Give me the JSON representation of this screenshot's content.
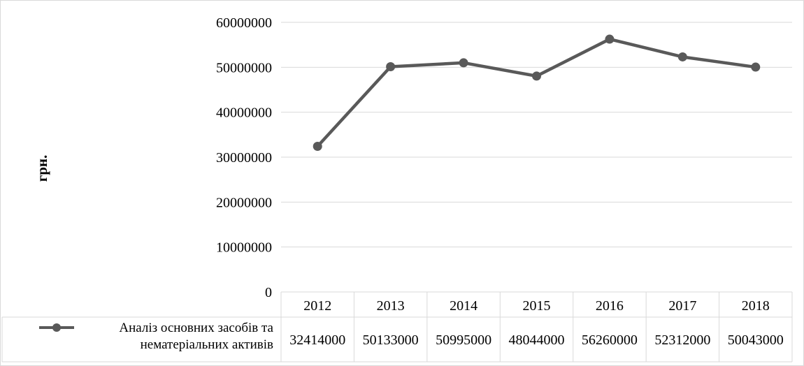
{
  "chart_data": {
    "type": "line",
    "title": "",
    "xlabel": "",
    "ylabel": "грн.",
    "ylim": [
      0,
      60000000
    ],
    "yticks": [
      "0",
      "10000000",
      "20000000",
      "30000000",
      "40000000",
      "50000000",
      "60000000"
    ],
    "categories": [
      "2012",
      "2013",
      "2014",
      "2015",
      "2016",
      "2017",
      "2018"
    ],
    "grid": true,
    "legend_position": "data-table",
    "series": [
      {
        "name": "Аналіз основних засобів та нематеріальних активів",
        "name_lines": [
          "Аналіз основних засобів та",
          "нематеріальних активів"
        ],
        "values": [
          32414000,
          50133000,
          50995000,
          48044000,
          56260000,
          52312000,
          50043000
        ],
        "value_labels": [
          "32414000",
          "50133000",
          "50995000",
          "48044000",
          "56260000",
          "52312000",
          "50043000"
        ],
        "color": "#595959"
      }
    ]
  }
}
